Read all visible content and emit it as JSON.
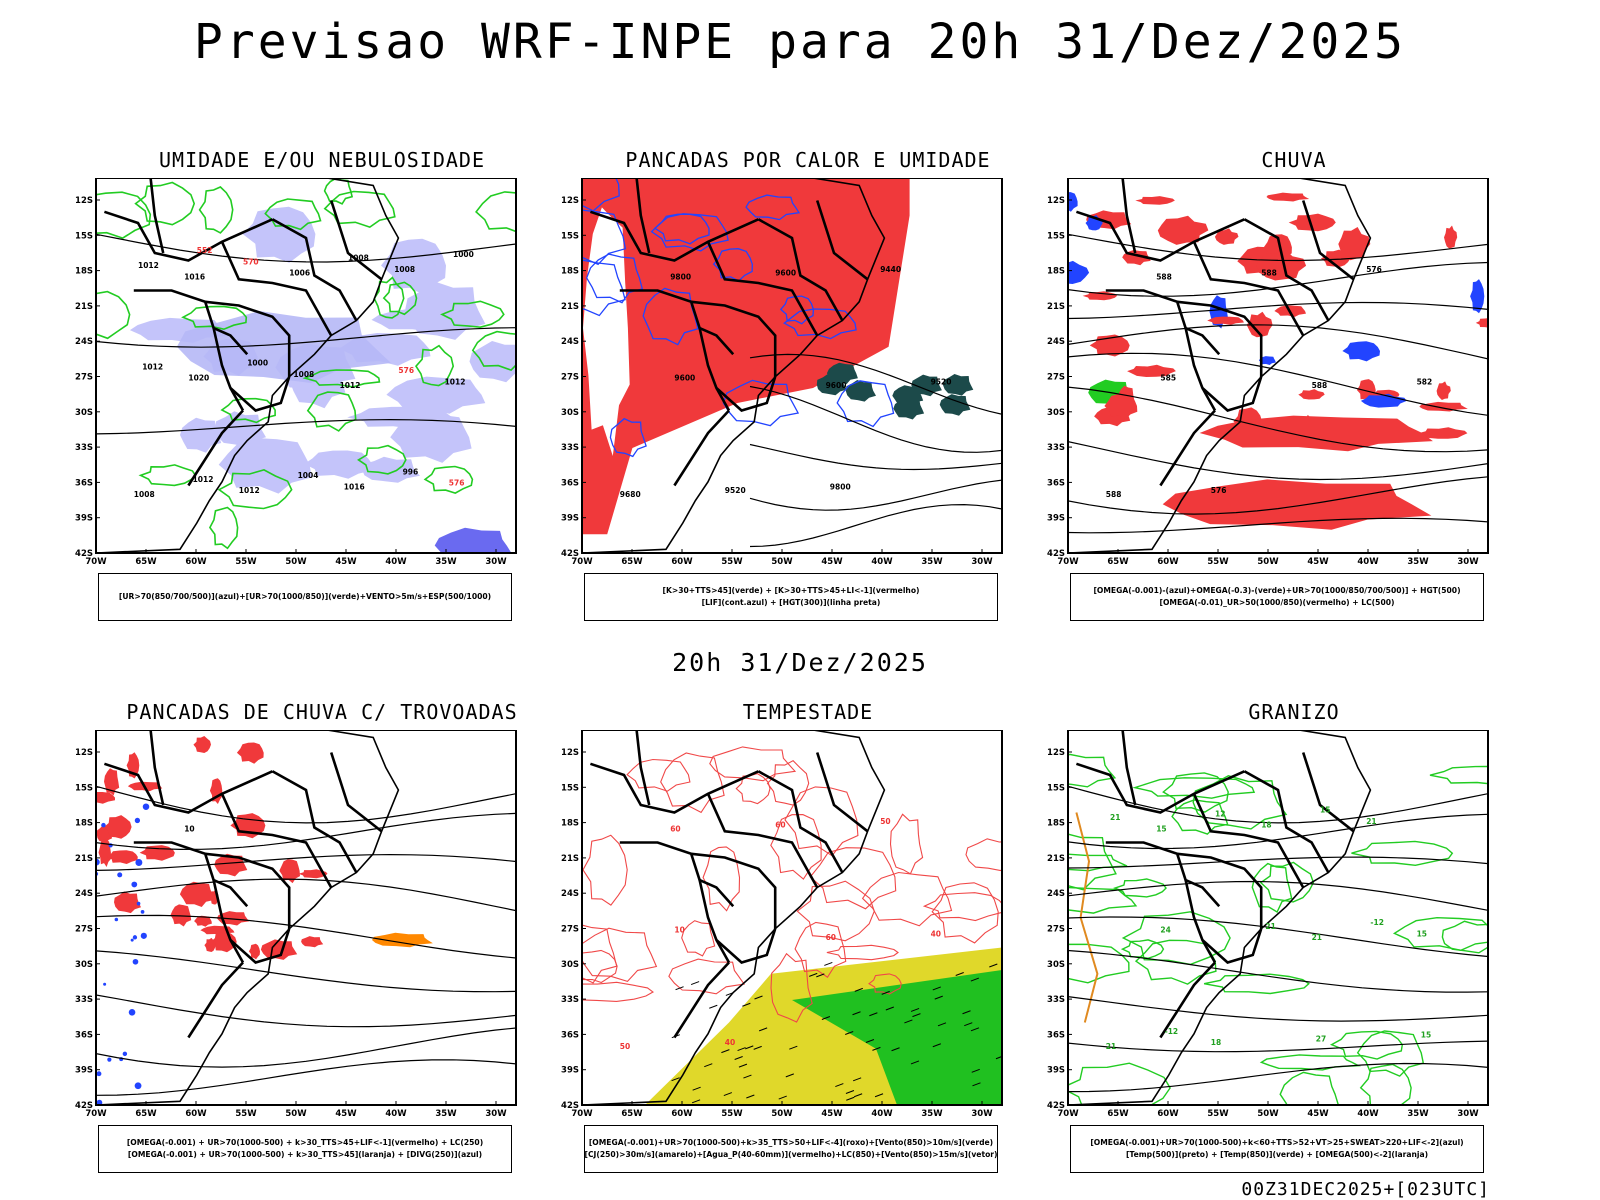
{
  "title": "Previsao WRF-INPE  para 20h 31/Dez/2025",
  "mid_time": "20h 31/Dez/2025",
  "footer": "00Z31DEC2025+[023UTC]",
  "axes": {
    "lat_labels": [
      "12S",
      "15S",
      "18S",
      "21S",
      "24S",
      "27S",
      "30S",
      "33S",
      "36S",
      "39S",
      "42S"
    ],
    "lon_labels": [
      "70W",
      "65W",
      "60W",
      "55W",
      "50W",
      "45W",
      "40W",
      "35W",
      "30W"
    ]
  },
  "panels": [
    {
      "title": "UMIDADE E/OU NEBULOSIDADE",
      "legend": [
        "[UR>70(850/700/500)](azul)+[UR>70(1000/850)](verde)+VENTO>5m/s+ESP(500/1000)"
      ],
      "labels": [
        "1016",
        "1012",
        "1008",
        "1006",
        "1012",
        "1012",
        "1008",
        "1020",
        "1016",
        "1012",
        "1008",
        "576",
        "570",
        "576",
        "1012",
        "1008",
        "1012",
        "1004",
        "1000",
        "1000",
        "996",
        "552"
      ]
    },
    {
      "title": "PANCADAS POR CALOR E UMIDADE",
      "legend": [
        "[K>30+TTS>45](verde)  +  [K>30+TTS>45+LI<-1](vermelho)",
        "[LIF](cont.azul)  +  [HGT(300)](linha preta)"
      ],
      "labels": [
        "9800",
        "9600",
        "9680",
        "9600",
        "9520",
        "9520",
        "9440",
        "9600",
        "9800"
      ]
    },
    {
      "title": "CHUVA",
      "legend": [
        "[OMEGA(-0.001)-(azul)+OMEGA(-0.3)-(verde)+UR>70(1000/850/700/500)]  +  HGT(500)",
        "[OMEGA(-0.01)_UR>50(1000/850)(vermelho)  +  LC(500)"
      ],
      "labels": [
        "588",
        "588",
        "588",
        "588",
        "582",
        "576",
        "576",
        "585"
      ]
    },
    {
      "title": "PANCADAS DE CHUVA C/ TROVOADAS",
      "legend": [
        "[OMEGA(-0.001)  +  UR>70(1000-500)  +  k>30_TTS>45+LIF<-1](vermelho)  +  LC(250)",
        "[OMEGA(-0.001)  +  UR>70(1000-500)  +  k>30_TTS>45](laranja)  +  [DIVG(250)](azul)"
      ],
      "labels": [
        "10"
      ]
    },
    {
      "title": "TEMPESTADE",
      "legend": [
        "[OMEGA(-0.001)+UR>70(1000-500)+k>35_TTS>50+LIF<-4](roxo)+[Vento(850)>10m/s](verde)",
        "[CJ(250)>30m/s](amarelo)+[Agua_P(40-60mm)](vermelho)+LC(850)+[Vento(850)>15m/s](vetor)"
      ],
      "labels": [
        "60",
        "60",
        "50",
        "60",
        "40",
        "40",
        "50",
        "10"
      ]
    },
    {
      "title": "GRANIZO",
      "legend": [
        "[OMEGA(-0.001)+UR>70(1000-500)+k<60+TTS>52+VT>25+SWEAT>220+LIF<-2](azul)",
        "[Temp(500)](preto)  +  [Temp(850)](verde)  +  [OMEGA(500)<-2](laranja)"
      ],
      "labels": [
        "15",
        "21",
        "21",
        "18",
        "15",
        "18",
        "21",
        "24",
        "27",
        "21",
        "21",
        "15",
        "12",
        "-12",
        "-12",
        "15"
      ]
    }
  ]
}
